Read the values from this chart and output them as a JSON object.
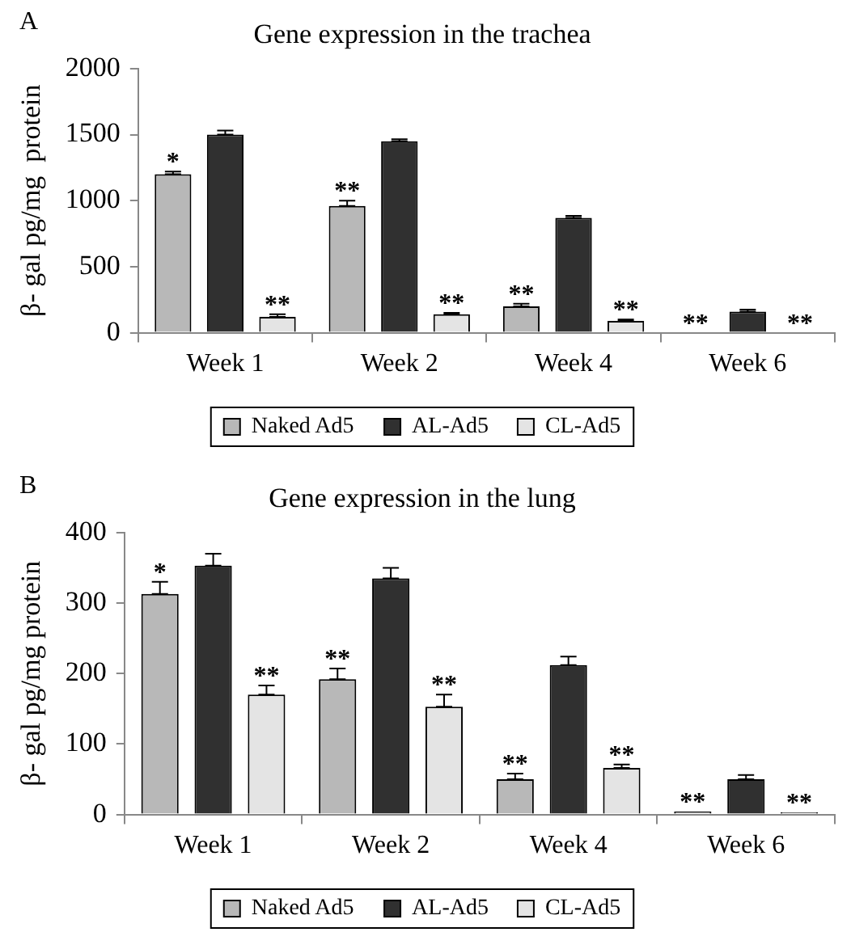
{
  "chart_data": [
    {
      "type": "bar",
      "title": "Gene expression in the trachea",
      "ylabel": "β- gal pg/mg  protein",
      "categories": [
        "Week 1",
        "Week 2",
        "Week 4",
        "Week 6"
      ],
      "series": [
        {
          "name": "Naked Ad5",
          "color": "#b8b8b8",
          "values": [
            1200,
            960,
            200,
            0
          ],
          "errors": [
            [
              1200,
              1220
            ],
            [
              960,
              1000
            ],
            [
              200,
              220
            ],
            null
          ]
        },
        {
          "name": "AL-Ad5",
          "color": "#303030",
          "values": [
            1500,
            1450,
            870,
            160
          ],
          "errors": [
            [
              1500,
              1530
            ],
            [
              1450,
              1465
            ],
            [
              870,
              885
            ],
            [
              160,
              175
            ]
          ]
        },
        {
          "name": "CL-Ad5",
          "color": "#e4e4e4",
          "values": [
            120,
            140,
            90,
            0
          ],
          "errors": [
            [
              120,
              140
            ],
            [
              140,
              150
            ],
            [
              90,
              100
            ],
            null
          ]
        }
      ],
      "ylim": [
        0,
        2000
      ],
      "yticks": [
        0,
        500,
        1000,
        1500,
        2000
      ],
      "grid": false,
      "legend": "bottom",
      "annotations": [
        "A",
        "*",
        "**",
        "**",
        "**",
        "**",
        "**",
        "**",
        "**"
      ]
    },
    {
      "type": "bar",
      "title": "Gene expression in the lung",
      "ylabel": "β- gal pg/mg protein",
      "categories": [
        "Week 1",
        "Week 2",
        "Week 4",
        "Week 6"
      ],
      "series": [
        {
          "name": "Naked Ad5",
          "color": "#b8b8b8",
          "values": [
            313,
            192,
            50,
            4
          ],
          "errors": [
            [
              313,
              330
            ],
            [
              192,
              207
            ],
            [
              50,
              58
            ],
            null
          ]
        },
        {
          "name": "AL-Ad5",
          "color": "#303030",
          "values": [
            353,
            335,
            212,
            50
          ],
          "errors": [
            [
              353,
              370
            ],
            [
              335,
              350
            ],
            [
              212,
              224
            ],
            [
              50,
              56
            ]
          ]
        },
        {
          "name": "CL-Ad5",
          "color": "#e4e4e4",
          "values": [
            170,
            153,
            66,
            3
          ],
          "errors": [
            [
              170,
              183
            ],
            [
              153,
              170
            ],
            [
              66,
              71
            ],
            null
          ]
        }
      ],
      "ylim": [
        0,
        400
      ],
      "yticks": [
        0,
        100,
        200,
        300,
        400
      ],
      "grid": false,
      "legend": "bottom",
      "annotations": [
        "B",
        "*",
        "**",
        "**",
        "**",
        "**",
        "**",
        "**",
        "**"
      ]
    }
  ]
}
